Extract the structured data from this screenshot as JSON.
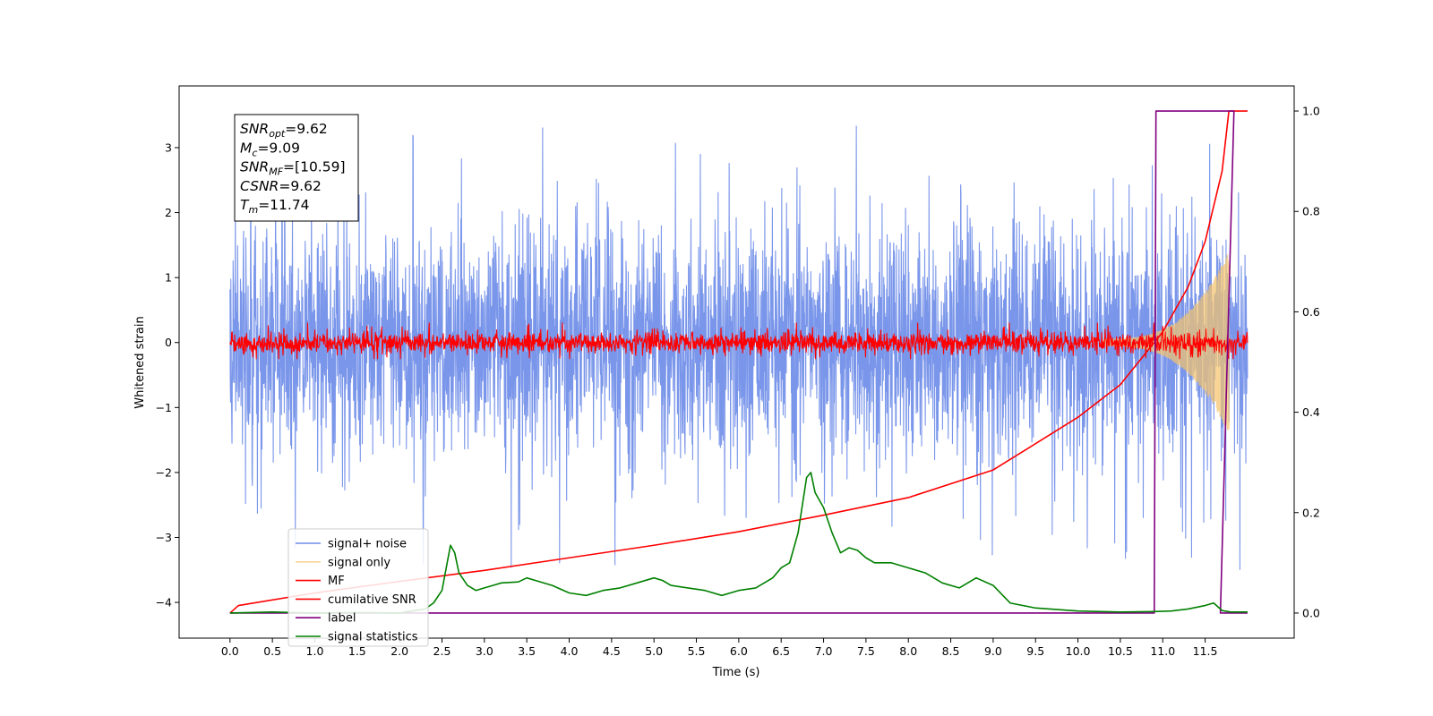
{
  "chart_data": {
    "type": "line",
    "title": "",
    "xlabel": "Time (s)",
    "ylabel": "Whitened strain",
    "y2label": "",
    "xlim": [
      -0.6,
      12.55
    ],
    "ylim": [
      -4.55,
      3.95
    ],
    "y2lim": [
      -0.05,
      1.05
    ],
    "xticks": [
      0.0,
      0.5,
      1.0,
      1.5,
      2.0,
      2.5,
      3.0,
      3.5,
      4.0,
      4.5,
      5.0,
      5.5,
      6.0,
      6.5,
      7.0,
      7.5,
      8.0,
      8.5,
      9.0,
      9.5,
      10.0,
      10.5,
      11.0,
      11.5
    ],
    "xtick_labels": [
      "0.0",
      "0.5",
      "1.0",
      "1.5",
      "2.0",
      "2.5",
      "3.0",
      "3.5",
      "4.0",
      "4.5",
      "5.0",
      "5.5",
      "6.0",
      "6.5",
      "7.0",
      "7.5",
      "8.0",
      "8.5",
      "9.0",
      "9.5",
      "10.0",
      "10.5",
      "11.0",
      "11.5"
    ],
    "yticks": [
      3,
      2,
      1,
      0,
      -1,
      -2,
      -3,
      -4
    ],
    "ytick_labels": [
      "3",
      "2",
      "1",
      "0",
      "−1",
      "−2",
      "−3",
      "−4"
    ],
    "y2ticks": [
      1.0,
      0.8,
      0.6,
      0.4,
      0.2,
      0.0
    ],
    "y2tick_labels": [
      "1.0",
      "0.8",
      "0.6",
      "0.4",
      "0.2",
      "0.0"
    ],
    "grid": false,
    "legend_position": "lower-left",
    "series": [
      {
        "name": "signal+ noise",
        "axis": "left",
        "color": "#6f8de8",
        "kind": "noise",
        "range": [
          0.0,
          12.0
        ],
        "envelope": 1.6,
        "peak_max": 3.55,
        "peak_min": -4.15
      },
      {
        "name": "signal only",
        "axis": "left",
        "color": "#f5c36b",
        "kind": "chirp",
        "range": [
          10.3,
          11.78
        ],
        "amplitude_start": 0.05,
        "amplitude_end": 1.4
      },
      {
        "name": "MF",
        "axis": "left",
        "color": "#ff0000",
        "kind": "noise",
        "range": [
          0.0,
          12.0
        ],
        "envelope": 0.15,
        "peak_max": 0.3,
        "peak_min": -0.25
      },
      {
        "name": "cumilative SNR",
        "axis": "right",
        "color": "#ff0000",
        "x": [
          0.0,
          0.1,
          1.0,
          2.0,
          3.0,
          4.0,
          5.0,
          6.0,
          7.0,
          8.0,
          9.0,
          10.0,
          10.5,
          11.0,
          11.3,
          11.5,
          11.7,
          11.78,
          11.8,
          12.0
        ],
        "y": [
          0.0,
          0.015,
          0.04,
          0.063,
          0.085,
          0.11,
          0.135,
          0.162,
          0.195,
          0.23,
          0.285,
          0.39,
          0.455,
          0.56,
          0.65,
          0.74,
          0.88,
          1.0,
          1.0,
          1.0
        ]
      },
      {
        "name": "label",
        "axis": "right",
        "color": "#800080",
        "x": [
          0.0,
          10.9,
          10.92,
          11.84,
          11.68,
          11.9,
          12.0
        ],
        "y": [
          0.0,
          0.0,
          1.0,
          1.0,
          0.0,
          0.0,
          0.0
        ]
      },
      {
        "name": "signal statistics",
        "axis": "right",
        "color": "#008000",
        "x": [
          0.0,
          0.5,
          1.0,
          1.5,
          2.0,
          2.3,
          2.4,
          2.5,
          2.6,
          2.65,
          2.7,
          2.8,
          2.9,
          3.0,
          3.1,
          3.2,
          3.4,
          3.5,
          3.6,
          3.8,
          4.0,
          4.2,
          4.4,
          4.6,
          4.8,
          5.0,
          5.1,
          5.2,
          5.4,
          5.6,
          5.8,
          6.0,
          6.2,
          6.4,
          6.5,
          6.6,
          6.7,
          6.8,
          6.85,
          6.9,
          7.0,
          7.1,
          7.2,
          7.3,
          7.4,
          7.5,
          7.6,
          7.8,
          8.0,
          8.2,
          8.4,
          8.6,
          8.8,
          9.0,
          9.2,
          9.5,
          10.0,
          10.5,
          10.9,
          11.1,
          11.3,
          11.5,
          11.6,
          11.7,
          11.8,
          12.0
        ],
        "y": [
          0.0,
          0.002,
          0.0,
          0.001,
          0.0,
          0.008,
          0.02,
          0.045,
          0.135,
          0.12,
          0.08,
          0.055,
          0.045,
          0.05,
          0.055,
          0.06,
          0.062,
          0.07,
          0.065,
          0.055,
          0.04,
          0.035,
          0.045,
          0.05,
          0.06,
          0.07,
          0.065,
          0.055,
          0.05,
          0.045,
          0.035,
          0.045,
          0.05,
          0.07,
          0.09,
          0.1,
          0.16,
          0.27,
          0.28,
          0.24,
          0.21,
          0.16,
          0.12,
          0.13,
          0.125,
          0.11,
          0.1,
          0.1,
          0.09,
          0.08,
          0.06,
          0.05,
          0.07,
          0.055,
          0.02,
          0.01,
          0.004,
          0.002,
          0.003,
          0.004,
          0.008,
          0.015,
          0.02,
          0.005,
          0.002,
          0.002
        ]
      }
    ],
    "annotation": {
      "lines": [
        {
          "main": "SNR",
          "sub": "opt",
          "value": "=9.62"
        },
        {
          "main": "M",
          "sub": "c",
          "value": "=9.09"
        },
        {
          "main": "SNR",
          "sub": "MF",
          "value": "=[10.59]"
        },
        {
          "main": "CSNR",
          "sub": "",
          "value": "=9.62"
        },
        {
          "main": "T",
          "sub": "m",
          "value": "=11.74"
        }
      ]
    }
  }
}
